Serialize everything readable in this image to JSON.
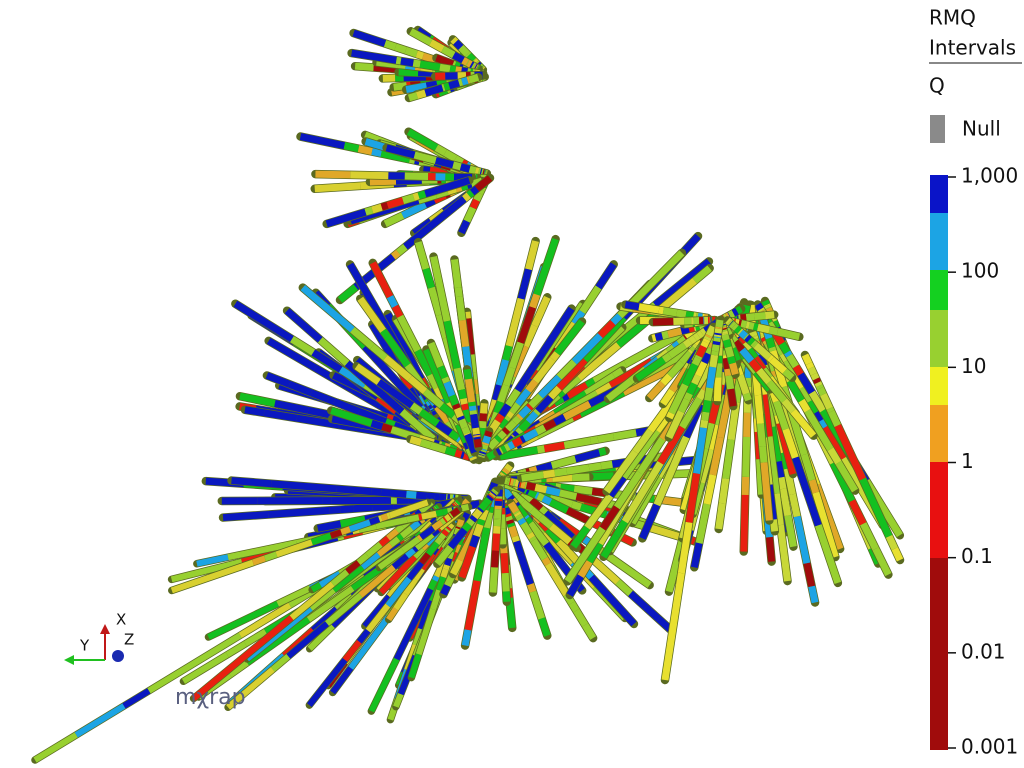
{
  "legend": {
    "title_line1": "RMQ",
    "title_line2": "Intervals",
    "attribute": "Q",
    "null_label": "Null",
    "scale": "log",
    "ticks": [
      {
        "value": 1000,
        "label": "1,000"
      },
      100,
      10,
      1,
      0.1,
      0.01,
      0.001
    ]
  },
  "axes_triad": {
    "x": "X",
    "y": "Y",
    "z": "Z"
  },
  "logo": "mχrap"
}
